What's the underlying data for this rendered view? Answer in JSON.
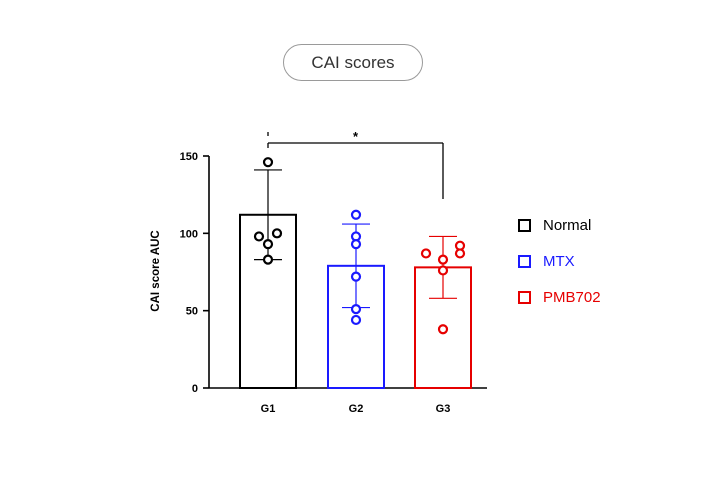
{
  "title": "CAI scores",
  "chart_data": {
    "type": "bar",
    "ylabel": "CAI score AUC",
    "xlabel": "",
    "ylim": [
      0,
      150
    ],
    "yticks": [
      0,
      50,
      100,
      150
    ],
    "categories": [
      "G1",
      "G2",
      "G3"
    ],
    "values": [
      112,
      79,
      78
    ],
    "errors": [
      29,
      27,
      20
    ],
    "points": [
      [
        146,
        100,
        98,
        93,
        83
      ],
      [
        112,
        98,
        93,
        72,
        51,
        44
      ],
      [
        92,
        87,
        87,
        83,
        76,
        38
      ]
    ],
    "colors": [
      "#000000",
      "#1a1aff",
      "#e60000"
    ],
    "significance": {
      "from": 0,
      "to": 2,
      "label": "*"
    },
    "legend": [
      {
        "label": "Normal",
        "color": "#000000"
      },
      {
        "label": "MTX",
        "color": "#1a1aff"
      },
      {
        "label": "PMB702",
        "color": "#e60000"
      }
    ],
    "legend_position": "right"
  }
}
